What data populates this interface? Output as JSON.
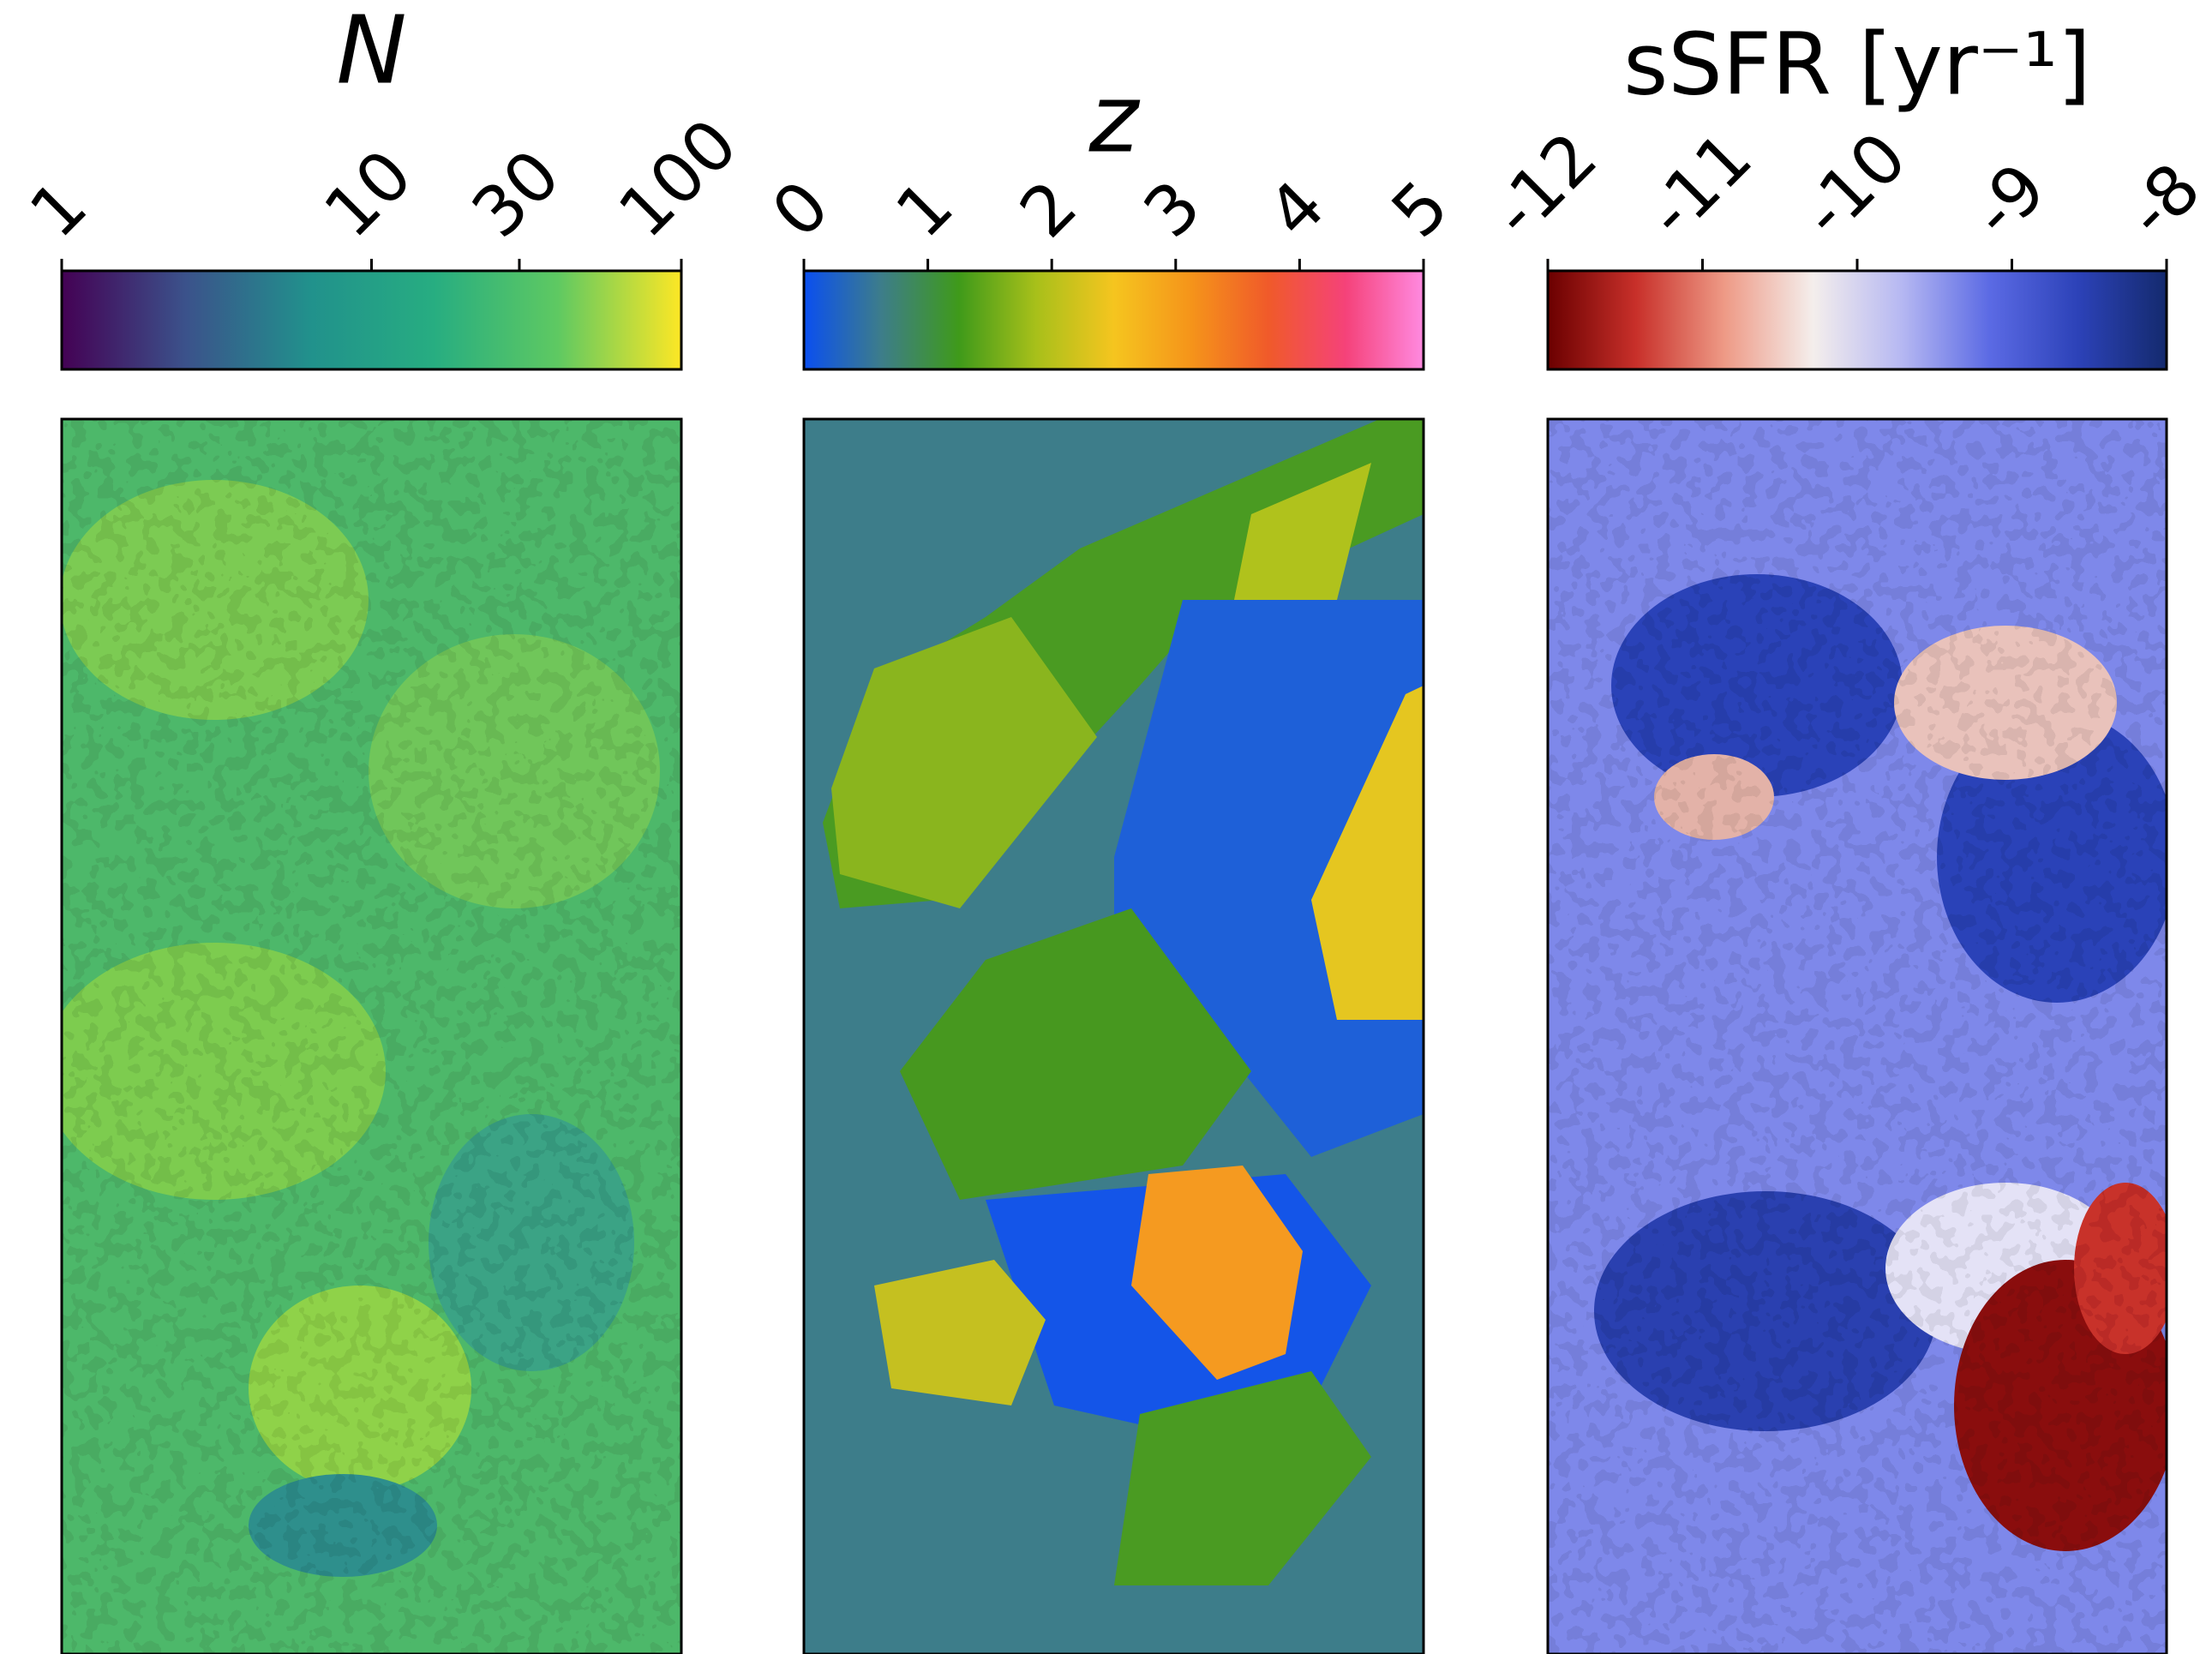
{
  "chart_data": [
    {
      "type": "colorbar",
      "title": "N",
      "title_italic": true,
      "log_scale": true,
      "xlim": [
        1,
        100
      ],
      "xticks": [
        1,
        10,
        30,
        100
      ],
      "colormap": [
        "#440154",
        "#3b528b",
        "#21918c",
        "#27ad81",
        "#5ec962",
        "#fde725"
      ]
    },
    {
      "type": "colorbar",
      "title": "z",
      "title_italic": true,
      "log_scale": false,
      "xlim": [
        0,
        5
      ],
      "xticks": [
        0,
        1,
        2,
        3,
        4,
        5
      ],
      "colormap": [
        "#0a4ff0",
        "#3d7d8a",
        "#3f9a1a",
        "#a8c01a",
        "#f5c51f",
        "#f5941a",
        "#f05a2a",
        "#f5427a",
        "#ff8ae0"
      ]
    },
    {
      "type": "colorbar",
      "title": "sSFR [yr⁻¹]",
      "title_italic": false,
      "log_scale": false,
      "xlim": [
        -12,
        -8
      ],
      "xticks": [
        -12,
        -11,
        -10,
        -9,
        -8
      ],
      "colormap": [
        "#6b0000",
        "#c8302a",
        "#ee9a86",
        "#f4eeec",
        "#b6b8f2",
        "#5b6ae4",
        "#2c42b8",
        "#142a6e"
      ]
    }
  ]
}
